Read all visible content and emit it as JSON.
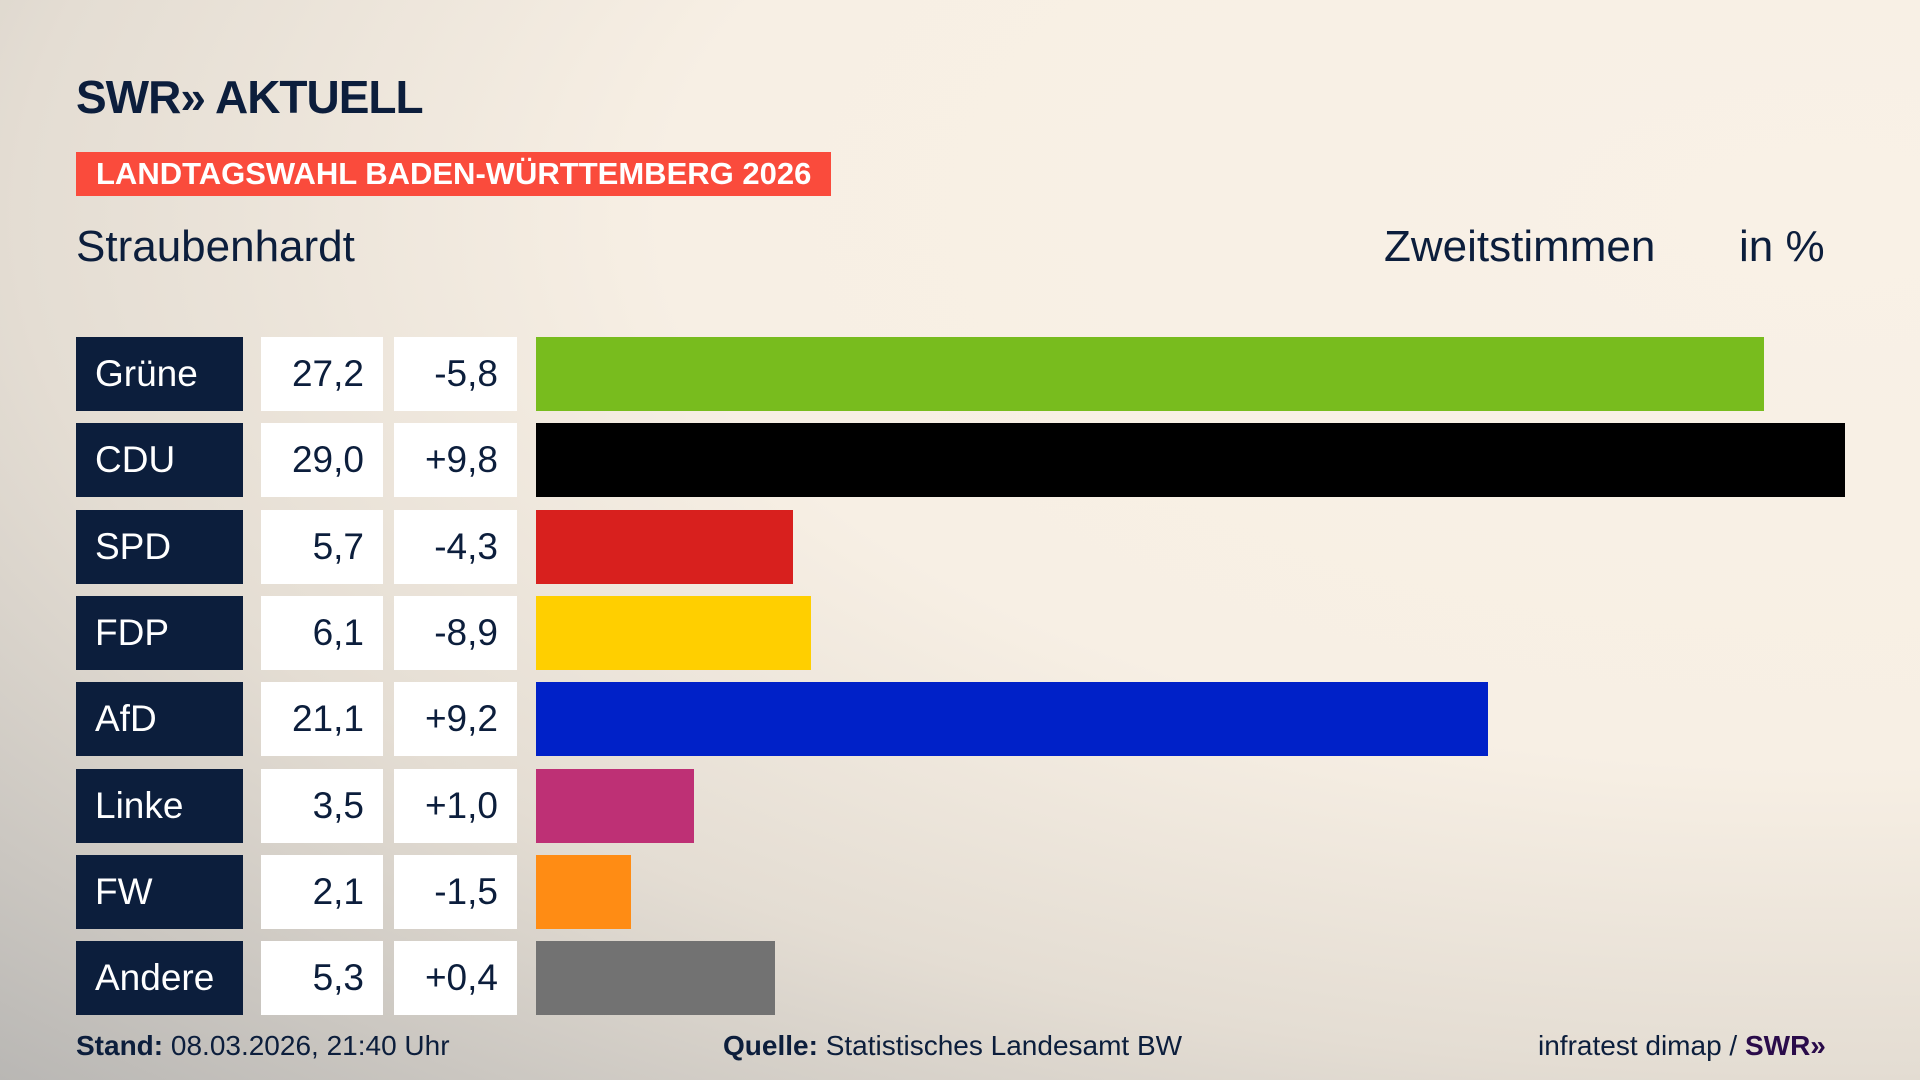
{
  "header": {
    "logo": "SWR» AKTUELL",
    "banner": "LANDTAGSWAHL BADEN-WÜRTTEMBERG 2026",
    "place": "Straubenhardt",
    "vote_type": "Zweitstimmen",
    "unit": "in %"
  },
  "chart_data": {
    "type": "bar",
    "orientation": "horizontal",
    "categories": [
      "Grüne",
      "CDU",
      "SPD",
      "FDP",
      "AfD",
      "Linke",
      "FW",
      "Andere"
    ],
    "values": [
      27.2,
      29.0,
      5.7,
      6.1,
      21.1,
      3.5,
      2.1,
      5.3
    ],
    "value_labels": [
      "27,2",
      "29,0",
      "5,7",
      "6,1",
      "21,1",
      "3,5",
      "2,1",
      "5,3"
    ],
    "diff_labels": [
      "-5,8",
      "+9,8",
      "-4,3",
      "-8,9",
      "+9,2",
      "+1,0",
      "-1,5",
      "+0,4"
    ],
    "diffs": [
      -5.8,
      9.8,
      -4.3,
      -8.9,
      9.2,
      1.0,
      -1.5,
      0.4
    ],
    "colors": [
      "#78bc1e",
      "#000000",
      "#d8201e",
      "#ffcf00",
      "#0021c8",
      "#be3075",
      "#ff8c14",
      "#727272"
    ],
    "xlim": [
      0,
      29.0
    ]
  },
  "footer": {
    "stand_label": "Stand:",
    "stand": "08.03.2026, 21:40 Uhr",
    "source_label": "Quelle:",
    "source": "Statistisches Landesamt BW",
    "credit": "infratest dimap / ",
    "credit_logo": "SWR»"
  }
}
